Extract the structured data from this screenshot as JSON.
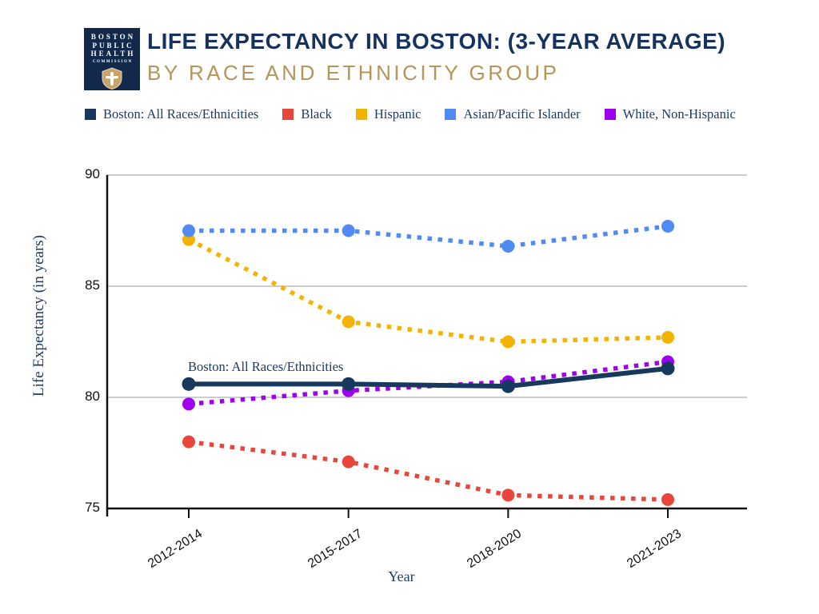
{
  "header": {
    "title": "LIFE EXPECTANCY IN BOSTON: (3-YEAR AVERAGE)",
    "subtitle": "BY RACE AND ETHNICITY GROUP",
    "logo": {
      "line1": "BOSTON",
      "line2": "PUBLIC",
      "line3": "HEALTH",
      "line4": "COMMISSION",
      "icon": "shield-dove-icon",
      "bg_color": "#13294b",
      "shield_color": "#c9a46a"
    }
  },
  "colors": {
    "title_navy": "#16325e",
    "subtitle_gold": "#b4965a",
    "text_navy": "#1b3a5f",
    "gridline": "#cccccc",
    "axis": "#111111"
  },
  "chart_data": {
    "type": "line",
    "title": "Life expectancy in Boston (3-year average) by race and ethnicity group",
    "categories": [
      "2012-2014",
      "2015-2017",
      "2018-2020",
      "2021-2023"
    ],
    "series": [
      {
        "name": "Boston: All Races/Ethnicities",
        "color": "#17395e",
        "style": "solid",
        "values": [
          80.6,
          80.6,
          80.5,
          81.3
        ]
      },
      {
        "name": "Black",
        "color": "#e8463a",
        "style": "dotted",
        "values": [
          78.0,
          77.1,
          75.6,
          75.4
        ]
      },
      {
        "name": "Hispanic",
        "color": "#f5b301",
        "style": "dotted",
        "values": [
          87.1,
          83.4,
          82.5,
          82.7
        ]
      },
      {
        "name": "Asian/Pacific Islander",
        "color": "#4f8bf3",
        "style": "dotted",
        "values": [
          87.5,
          87.5,
          86.8,
          87.7
        ]
      },
      {
        "name": "White, Non-Hispanic",
        "color": "#9e00f0",
        "style": "dotted",
        "values": [
          79.7,
          80.3,
          80.7,
          81.6
        ]
      }
    ],
    "xlabel": "Year",
    "ylabel": "Life Expectancy (in years)",
    "ylim": [
      75,
      90
    ],
    "yticks": [
      90,
      85,
      80,
      75
    ],
    "grid": true,
    "legend_position": "top",
    "annotation": "Boston: All Races/Ethnicities"
  }
}
